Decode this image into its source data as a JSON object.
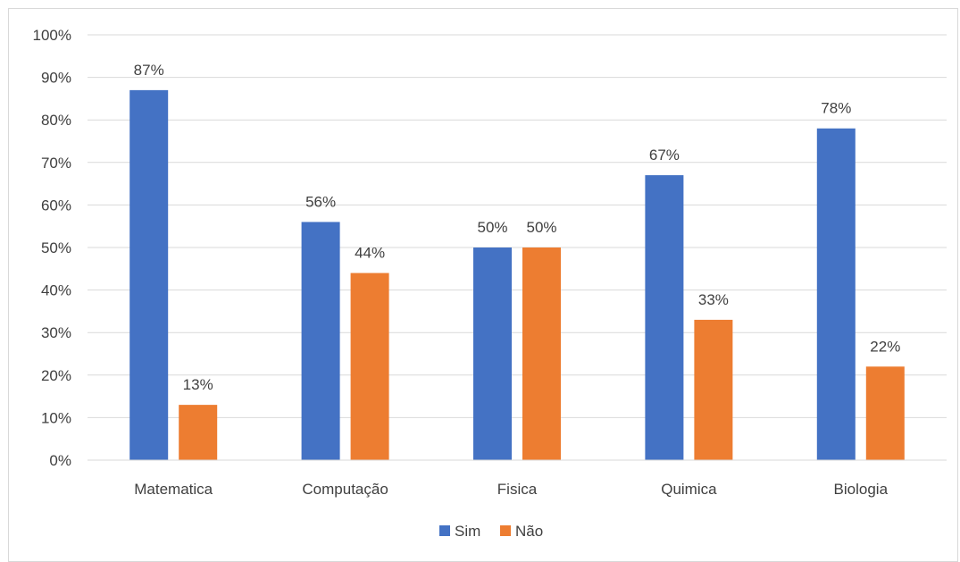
{
  "chart_data": {
    "type": "bar",
    "categories": [
      "Matematica",
      "Computação",
      "Fisica",
      "Quimica",
      "Biologia"
    ],
    "series": [
      {
        "name": "Sim",
        "values": [
          87,
          56,
          50,
          67,
          78
        ],
        "labels": [
          "87%",
          "56%",
          "50%",
          "67%",
          "78%"
        ],
        "color": "#4472c4"
      },
      {
        "name": "Não",
        "values": [
          13,
          44,
          50,
          33,
          22
        ],
        "labels": [
          "13%",
          "44%",
          "50%",
          "33%",
          "22%"
        ],
        "color": "#ed7d31"
      }
    ],
    "ylim": [
      0,
      100
    ],
    "yticks": [
      0,
      10,
      20,
      30,
      40,
      50,
      60,
      70,
      80,
      90,
      100
    ],
    "ytick_labels": [
      "0%",
      "10%",
      "20%",
      "30%",
      "40%",
      "50%",
      "60%",
      "70%",
      "80%",
      "90%",
      "100%"
    ],
    "grid": true,
    "legend_position": "bottom",
    "gridline_color": "#d9d9d9"
  }
}
